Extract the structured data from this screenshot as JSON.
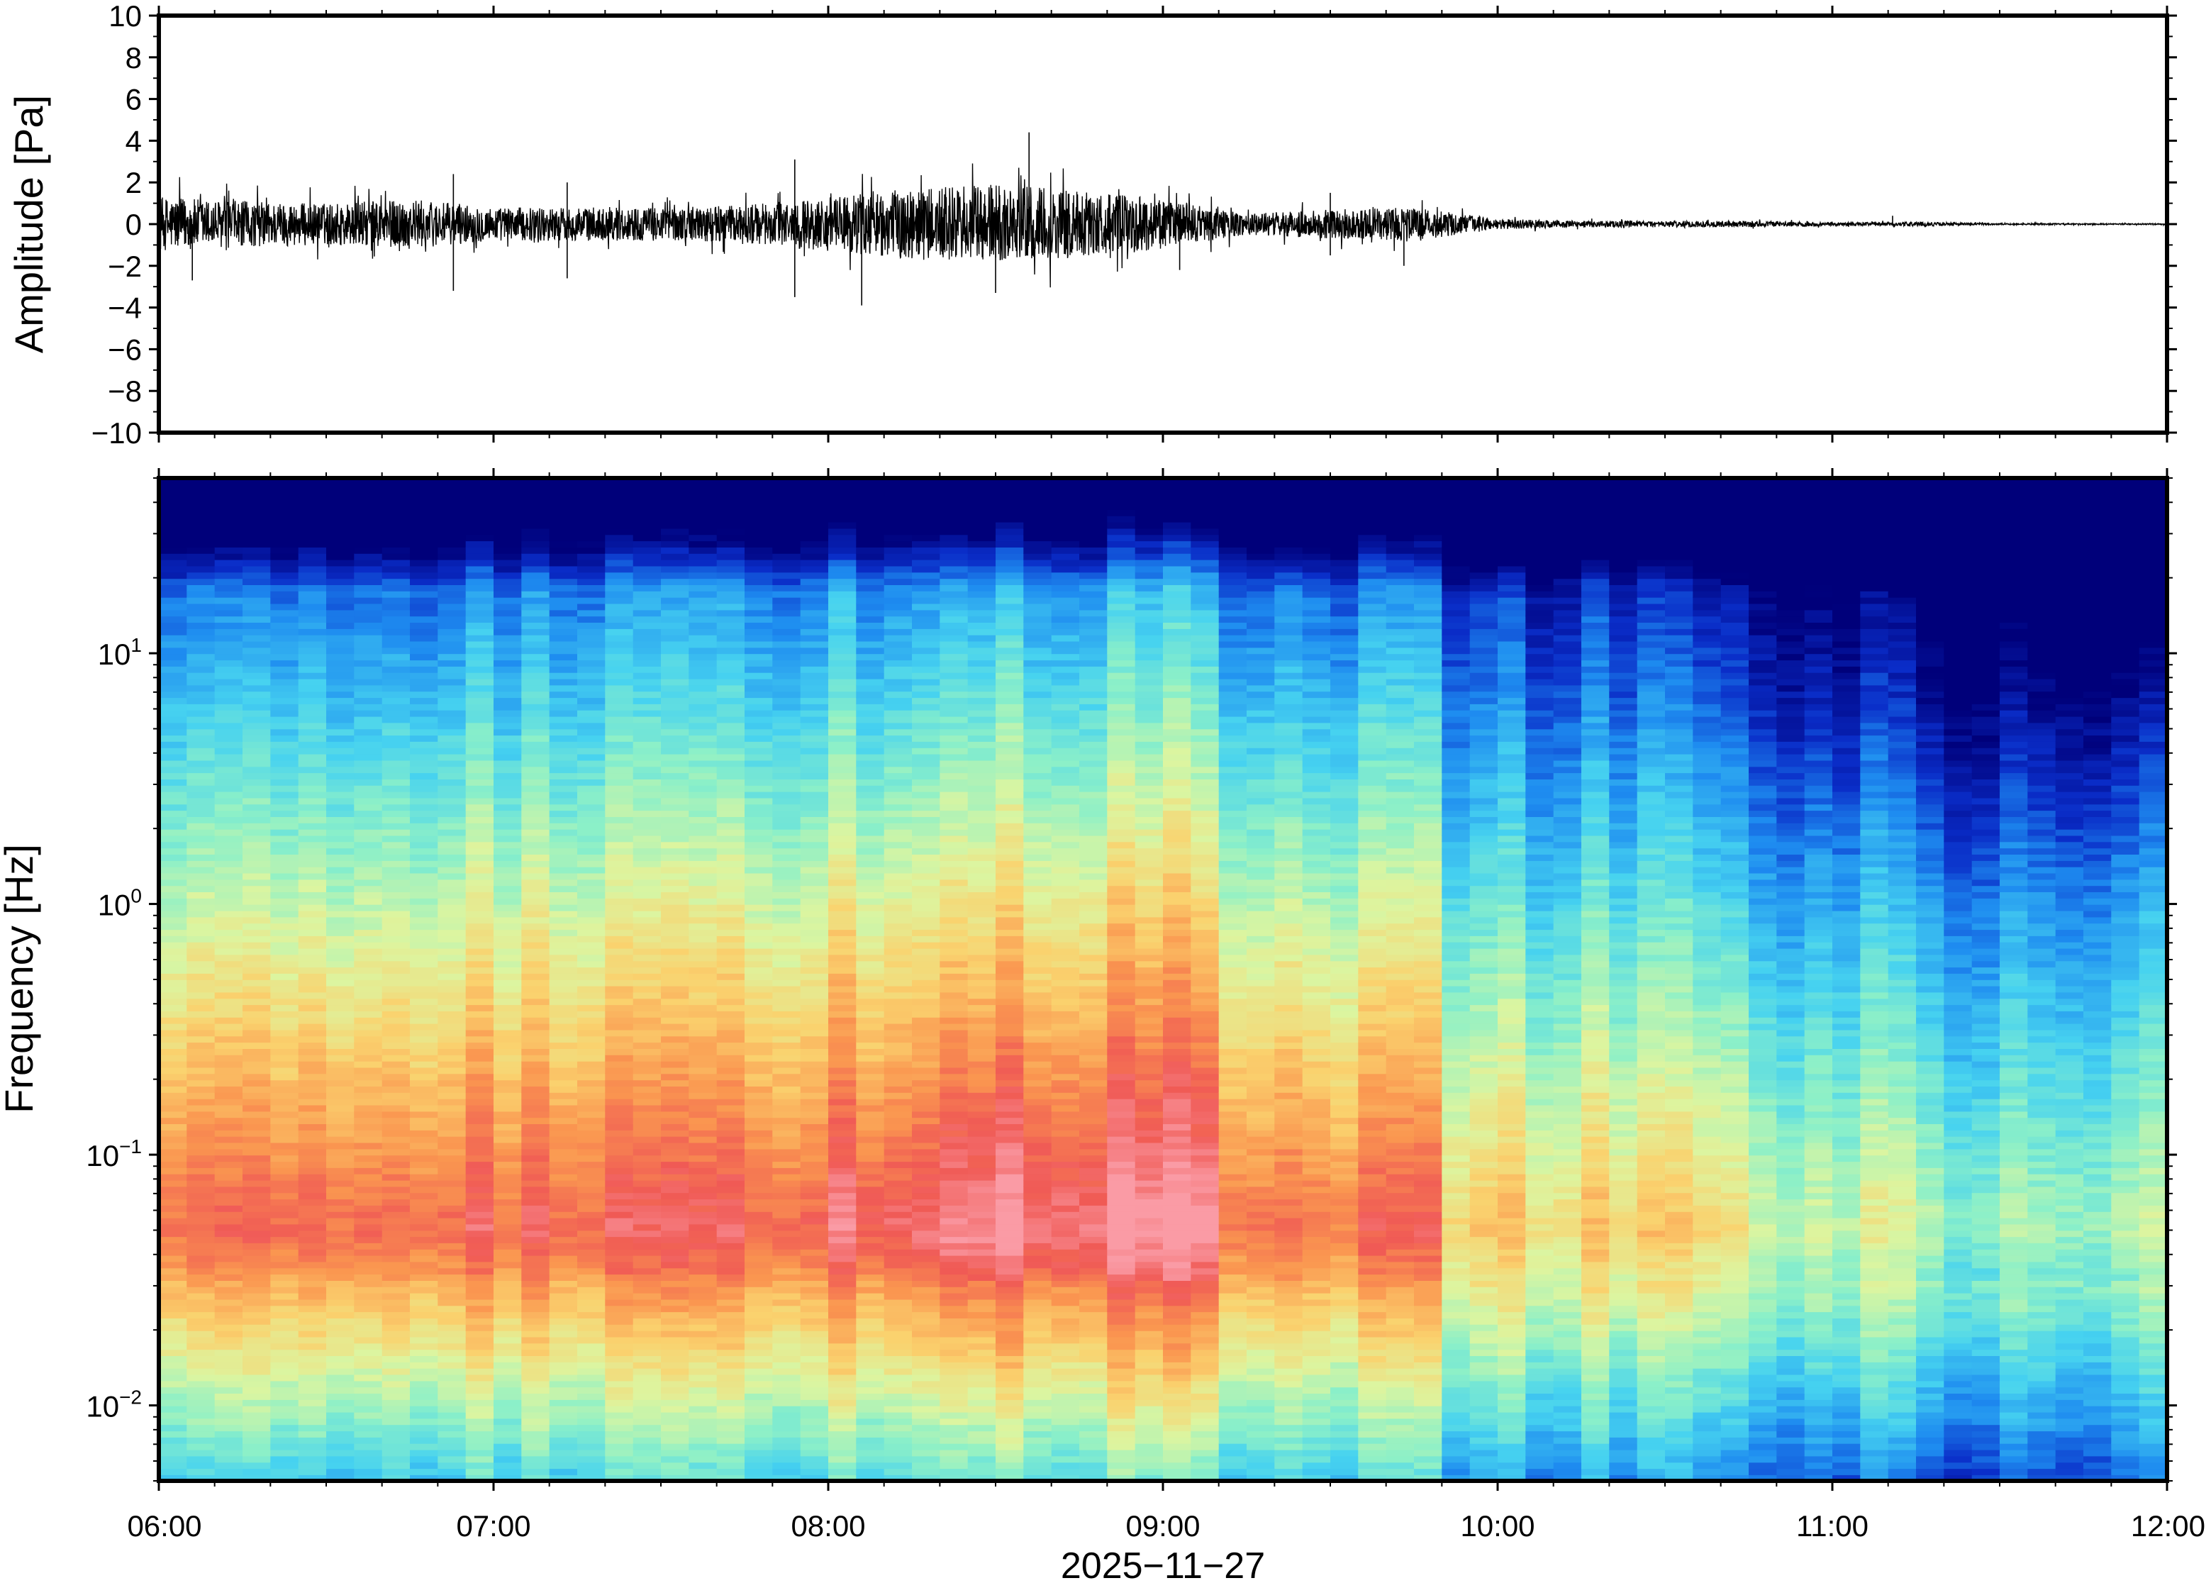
{
  "chart_data": [
    {
      "type": "line",
      "panel": "waveform",
      "title": "",
      "ylabel": "Amplitude [Pa]",
      "xlabel": "",
      "ylim": [
        -10,
        10
      ],
      "xlim": [
        "06:00",
        "12:00"
      ],
      "y_ticks": [
        -10,
        -8,
        -6,
        -4,
        -2,
        0,
        2,
        4,
        6,
        8,
        10
      ],
      "y_tick_labels": [
        "−10",
        "−8",
        "−6",
        "−4",
        "−2",
        "0",
        "2",
        "4",
        "6",
        "8",
        "10"
      ],
      "grid": false,
      "series": [
        {
          "values_description_note": "",
          "envelope_hours": [
            6.0,
            6.25,
            6.5,
            6.75,
            7.0,
            7.25,
            7.5,
            7.75,
            8.0,
            8.25,
            8.5,
            8.75,
            9.0,
            9.25,
            9.5,
            9.75,
            10.0,
            10.25,
            10.5,
            10.75,
            11.0,
            11.25,
            11.5,
            11.75,
            12.0
          ],
          "envelope_amplitude": [
            1.3,
            1.1,
            1.0,
            1.2,
            0.8,
            0.8,
            0.8,
            0.9,
            1.3,
            1.7,
            1.9,
            1.6,
            1.2,
            0.5,
            0.7,
            0.8,
            0.25,
            0.15,
            0.15,
            0.15,
            0.08,
            0.1,
            0.04,
            0.03,
            0.03
          ],
          "spikes": [
            {
              "hour": 6.1,
              "value": -2.7
            },
            {
              "hour": 6.88,
              "value": 2.4
            },
            {
              "hour": 6.88,
              "value": -3.2
            },
            {
              "hour": 7.22,
              "value": 2.0
            },
            {
              "hour": 7.22,
              "value": -2.6
            },
            {
              "hour": 7.9,
              "value": 3.1
            },
            {
              "hour": 7.9,
              "value": -3.5
            },
            {
              "hour": 8.1,
              "value": -3.9
            },
            {
              "hour": 8.6,
              "value": 4.4
            },
            {
              "hour": 8.5,
              "value": -3.3
            },
            {
              "hour": 9.05,
              "value": -2.2
            },
            {
              "hour": 9.5,
              "value": 1.5
            },
            {
              "hour": 9.5,
              "value": -1.5
            },
            {
              "hour": 9.72,
              "value": -2.0
            },
            {
              "hour": 11.18,
              "value": 0.4
            }
          ]
        }
      ]
    },
    {
      "type": "heatmap",
      "panel": "spectrogram",
      "title": "",
      "ylabel": "Frequency [Hz]",
      "xlabel": "2025−11−27",
      "y_scale": "log",
      "ylim": [
        0.005,
        50
      ],
      "xlim": [
        "06:00",
        "12:00"
      ],
      "x_ticks": [
        "06:00",
        "07:00",
        "08:00",
        "09:00",
        "10:00",
        "11:00",
        "12:00"
      ],
      "y_ticks": [
        {
          "value": 0.01,
          "base": "10",
          "exp": "−2"
        },
        {
          "value": 0.1,
          "base": "10",
          "exp": "−1"
        },
        {
          "value": 1,
          "base": "10",
          "exp": "0"
        },
        {
          "value": 10,
          "base": "10",
          "exp": "1"
        }
      ],
      "colormap": [
        "#00007a",
        "#0a2dc8",
        "#1e8cf0",
        "#46d2f0",
        "#8cf0c8",
        "#dcf5a0",
        "#fad26e",
        "#fa9650",
        "#f05a55",
        "#fa9ba5"
      ],
      "time_columns": 72,
      "note_structure": "Intensity is highest (pink/red) near 0.03–0.3 Hz between 06:00–09:45, strongest 08:00–09:00; high frequencies (>10 Hz) are deep blue, blue region extends downward after 10:00 to ~2 Hz by 12:00."
    }
  ]
}
